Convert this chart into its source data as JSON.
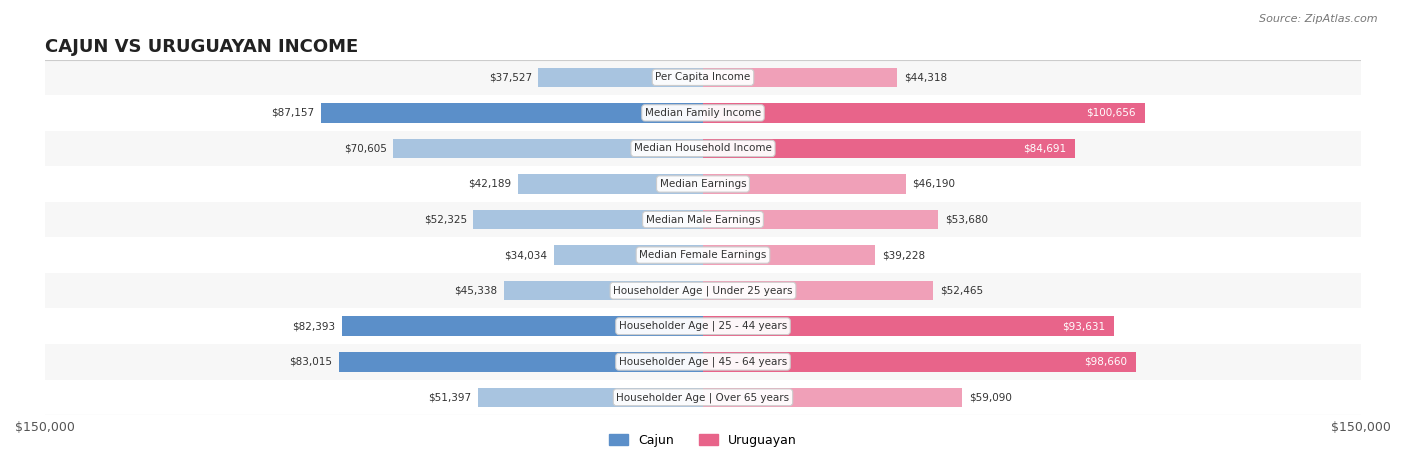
{
  "title": "CAJUN VS URUGUAYAN INCOME",
  "source": "Source: ZipAtlas.com",
  "categories": [
    "Per Capita Income",
    "Median Family Income",
    "Median Household Income",
    "Median Earnings",
    "Median Male Earnings",
    "Median Female Earnings",
    "Householder Age | Under 25 years",
    "Householder Age | 25 - 44 years",
    "Householder Age | 45 - 64 years",
    "Householder Age | Over 65 years"
  ],
  "cajun_values": [
    37527,
    87157,
    70605,
    42189,
    52325,
    34034,
    45338,
    82393,
    83015,
    51397
  ],
  "uruguayan_values": [
    44318,
    100656,
    84691,
    46190,
    53680,
    39228,
    52465,
    93631,
    98660,
    59090
  ],
  "cajun_labels": [
    "$37,527",
    "$87,157",
    "$70,605",
    "$42,189",
    "$52,325",
    "$34,034",
    "$45,338",
    "$82,393",
    "$83,015",
    "$51,397"
  ],
  "uruguayan_labels": [
    "$44,318",
    "$100,656",
    "$84,691",
    "$46,190",
    "$53,680",
    "$39,228",
    "$52,465",
    "$93,631",
    "$98,660",
    "$59,090"
  ],
  "cajun_color_light": "#a8c4e0",
  "cajun_color_dark": "#5b8fc9",
  "uruguayan_color_light": "#f0a0b8",
  "uruguayan_color_dark": "#e8648a",
  "max_value": 150000,
  "background_row": "#f0f0f0",
  "background_alt": "#ffffff",
  "label_color_dark_threshold": 75000
}
